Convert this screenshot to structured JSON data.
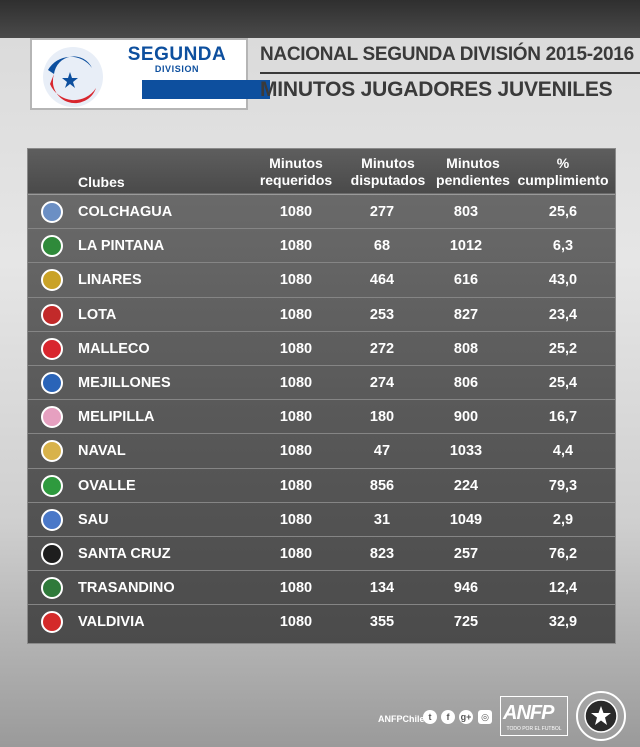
{
  "header": {
    "logo_title": "SEGUNDA",
    "logo_subtitle": "DIVISION",
    "title": "NACIONAL SEGUNDA DIVISIÓN 2015-2016",
    "subtitle": "MINUTOS JUGADORES JUVENILES"
  },
  "table": {
    "columns": {
      "club": "Clubes",
      "required_1": "Minutos",
      "required_2": "requeridos",
      "played_1": "Minutos",
      "played_2": "disputados",
      "pending_1": "Minutos",
      "pending_2": "pendientes",
      "pct_1": "%",
      "pct_2": "cumplimiento"
    },
    "rows": [
      {
        "club": "COLCHAGUA",
        "required": "1080",
        "played": "277",
        "pending": "803",
        "pct": "25,6",
        "crest": "colchagua-crest-icon",
        "color": "#6b8fc4"
      },
      {
        "club": "LA PINTANA",
        "required": "1080",
        "played": "68",
        "pending": "1012",
        "pct": "6,3",
        "crest": "la-pintana-crest-icon",
        "color": "#2f8a3a"
      },
      {
        "club": "LINARES",
        "required": "1080",
        "played": "464",
        "pending": "616",
        "pct": "43,0",
        "crest": "linares-crest-icon",
        "color": "#c9a227"
      },
      {
        "club": "LOTA",
        "required": "1080",
        "played": "253",
        "pending": "827",
        "pct": "23,4",
        "crest": "lota-crest-icon",
        "color": "#c22a2a"
      },
      {
        "club": "MALLECO",
        "required": "1080",
        "played": "272",
        "pending": "808",
        "pct": "25,2",
        "crest": "malleco-crest-icon",
        "color": "#d8262e"
      },
      {
        "club": "MEJILLONES",
        "required": "1080",
        "played": "274",
        "pending": "806",
        "pct": "25,4",
        "crest": "mejillones-crest-icon",
        "color": "#2a64b8"
      },
      {
        "club": "MELIPILLA",
        "required": "1080",
        "played": "180",
        "pending": "900",
        "pct": "16,7",
        "crest": "melipilla-crest-icon",
        "color": "#e6a0c0"
      },
      {
        "club": "NAVAL",
        "required": "1080",
        "played": "47",
        "pending": "1033",
        "pct": "4,4",
        "crest": "naval-crest-icon",
        "color": "#d8b24a"
      },
      {
        "club": "OVALLE",
        "required": "1080",
        "played": "856",
        "pending": "224",
        "pct": "79,3",
        "crest": "ovalle-crest-icon",
        "color": "#2e9a3e"
      },
      {
        "club": "SAU",
        "required": "1080",
        "played": "31",
        "pending": "1049",
        "pct": "2,9",
        "crest": "sau-crest-icon",
        "color": "#4a78c8"
      },
      {
        "club": "SANTA CRUZ",
        "required": "1080",
        "played": "823",
        "pending": "257",
        "pct": "76,2",
        "crest": "santa-cruz-crest-icon",
        "color": "#1e1e1e"
      },
      {
        "club": "TRASANDINO",
        "required": "1080",
        "played": "134",
        "pending": "946",
        "pct": "12,4",
        "crest": "trasandino-crest-icon",
        "color": "#2f7a3a"
      },
      {
        "club": "VALDIVIA",
        "required": "1080",
        "played": "355",
        "pending": "725",
        "pct": "32,9",
        "crest": "valdivia-crest-icon",
        "color": "#d42a2a"
      }
    ]
  },
  "footer": {
    "handle": "ANFPChile",
    "social_icons": [
      "twitter-icon",
      "facebook-icon",
      "google-plus-icon",
      "instagram-icon"
    ],
    "anfp_logo": "ANFP",
    "anfp_tagline": "TODO POR EL FUTBOL"
  },
  "colors": {
    "accent_blue": "#0d4f9e",
    "accent_red": "#d8262e",
    "table_bg": "#5a5a5a",
    "text_dark": "#3a3a3a"
  }
}
